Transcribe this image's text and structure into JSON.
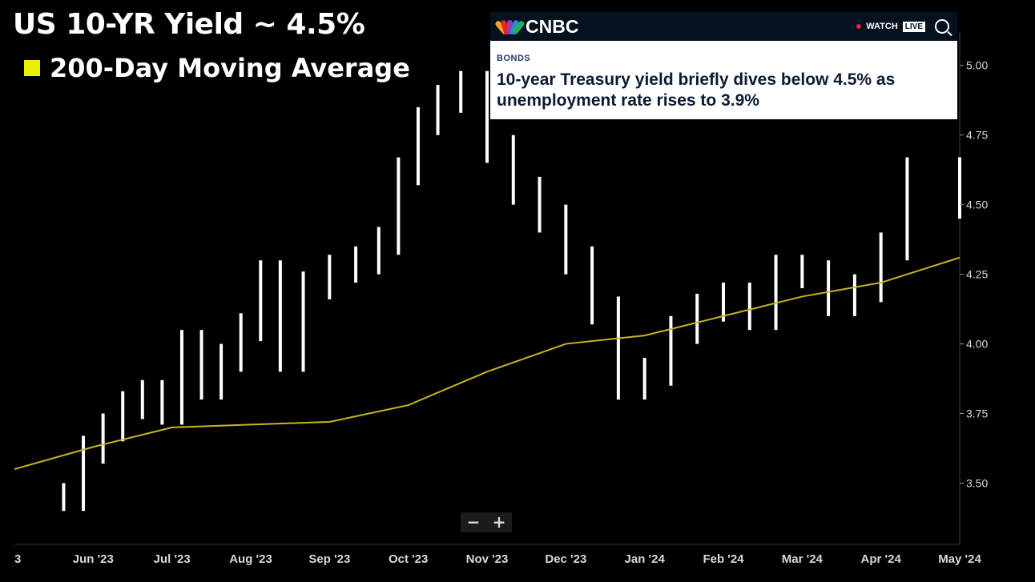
{
  "title": "US 10-YR Yield ~ 4.5%",
  "legend": {
    "label": "200-Day Moving Average",
    "color": "#e6f000"
  },
  "news": {
    "brand": "CNBC",
    "watch": "WATCH",
    "live": "LIVE",
    "category": "BONDS",
    "headline": "10-year Treasury yield briefly dives below 4.5% as unemployment rate rises to 3.9%"
  },
  "zoom": {
    "minus": "−",
    "plus": "+"
  },
  "chart_data": {
    "type": "line",
    "title": "US 10-YR Yield ~ 4.5%",
    "xlabel": "",
    "ylabel": "",
    "ylim": [
      3.28,
      5.12
    ],
    "yticks": [
      "5.00",
      "4.75",
      "4.50",
      "4.25",
      "4.00",
      "3.75",
      "3.50"
    ],
    "xticks": [
      "3",
      "Jun '23",
      "Jul '23",
      "Aug '23",
      "Sep '23",
      "Oct '23",
      "Nov '23",
      "Dec '23",
      "Jan '24",
      "Feb '24",
      "Mar '24",
      "Apr '24",
      "May '24"
    ],
    "colors": {
      "price": "#ffffff",
      "ma": "#c9b421"
    },
    "series": [
      {
        "name": "",
        "style": "ohlc-bars",
        "x": [
          "Jun '23",
          "Jun '23",
          "Jun '23",
          "Jun '23",
          "Jul '23",
          "Jul '23",
          "Jul '23",
          "Jul '23",
          "Aug '23",
          "Aug '23",
          "Aug '23",
          "Aug '23",
          "Sep '23",
          "Sep '23",
          "Sep '23",
          "Oct '23",
          "Oct '23",
          "Oct '23",
          "Oct '23",
          "Nov '23",
          "Nov '23",
          "Nov '23",
          "Dec '23",
          "Dec '23",
          "Dec '23",
          "Jan '24",
          "Jan '24",
          "Jan '24",
          "Feb '24",
          "Feb '24",
          "Feb '24",
          "Mar '24",
          "Mar '24",
          "Mar '24",
          "Apr '24",
          "Apr '24",
          "Apr '24",
          "May '24"
        ],
        "values": [
          3.45,
          3.62,
          3.7,
          3.78,
          3.82,
          3.76,
          4.0,
          3.85,
          3.95,
          4.06,
          4.25,
          3.95,
          4.21,
          4.27,
          4.3,
          4.37,
          4.62,
          4.8,
          4.88,
          4.93,
          4.7,
          4.55,
          4.45,
          4.3,
          4.12,
          3.85,
          3.9,
          4.05,
          4.13,
          4.17,
          4.1,
          4.27,
          4.25,
          4.15,
          4.2,
          4.35,
          4.62,
          4.5
        ]
      },
      {
        "name": "200-Day Moving Average",
        "style": "line",
        "x": [
          "3",
          "Jun '23",
          "Jul '23",
          "Aug '23",
          "Sep '23",
          "Oct '23",
          "Nov '23",
          "Dec '23",
          "Jan '24",
          "Feb '24",
          "Mar '24",
          "Apr '24",
          "May '24"
        ],
        "values": [
          3.55,
          3.63,
          3.7,
          3.71,
          3.72,
          3.78,
          3.9,
          4.0,
          4.03,
          4.1,
          4.17,
          4.22,
          4.31
        ]
      }
    ]
  }
}
